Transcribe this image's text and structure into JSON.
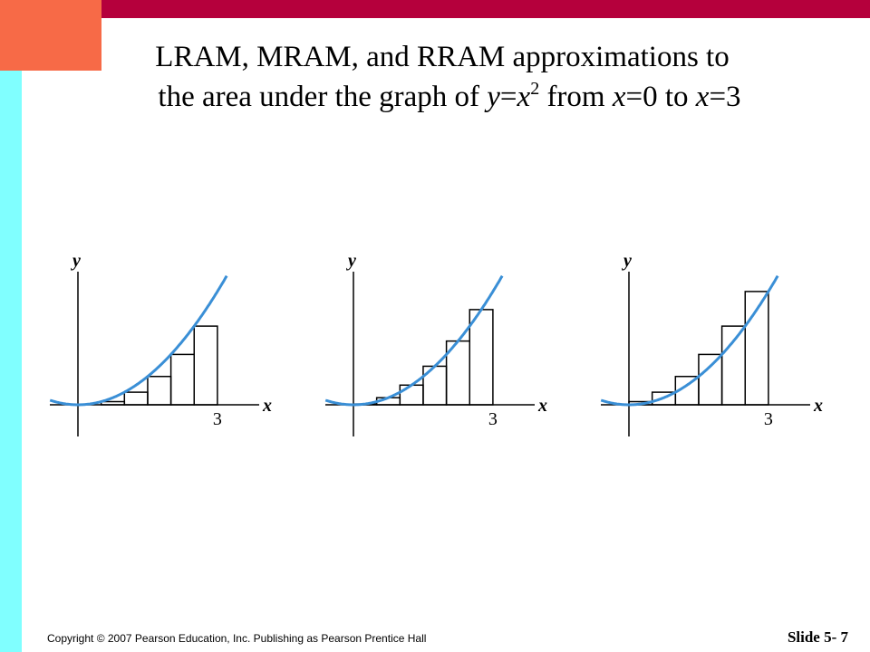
{
  "title": {
    "line1": "LRAM, MRAM, and RRAM approximations to",
    "line2": [
      "the area under the graph of ",
      "y",
      "=",
      "x",
      "2",
      " from ",
      "x",
      "=0 to ",
      "x",
      "=3"
    ]
  },
  "graphs": [
    {
      "y_label": "y",
      "x_label": "x",
      "tick": "3"
    },
    {
      "y_label": "y",
      "x_label": "x",
      "tick": "3"
    },
    {
      "y_label": "y",
      "x_label": "x",
      "tick": "3"
    }
  ],
  "footer": {
    "copyright": "Copyright © 2007 Pearson Education, Inc. Publishing as Pearson Prentice Hall",
    "slide": "Slide 5- 7"
  }
}
